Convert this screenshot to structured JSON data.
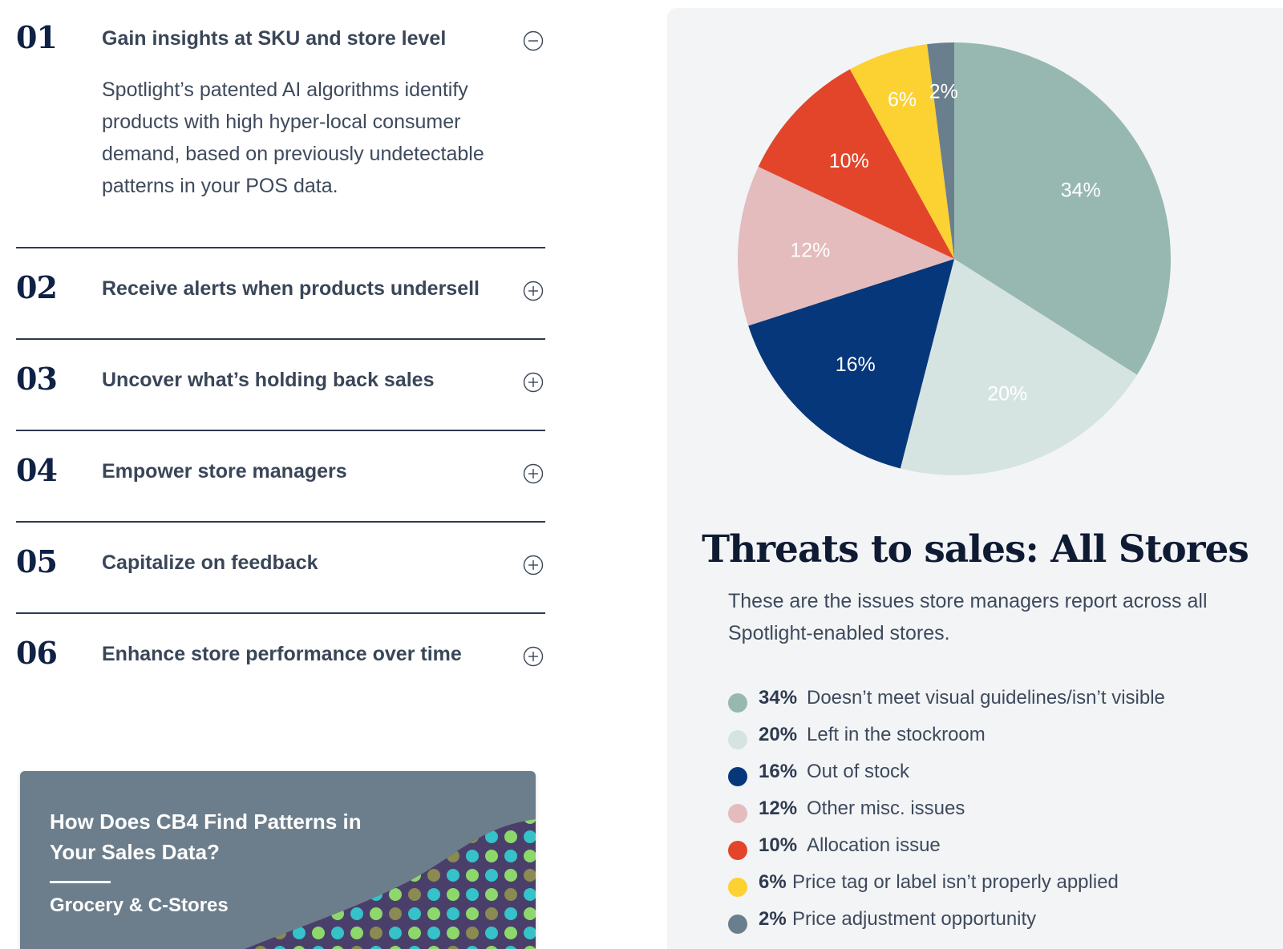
{
  "accordion": {
    "items": [
      {
        "num": "01",
        "title": "Gain insights at SKU and store level",
        "expanded": true,
        "body": "Spotlight’s patented AI algorithms identify products with high hyper-local consumer demand, based on previously undetectable patterns in your POS data.",
        "toggle_icon": "minus-circle-icon"
      },
      {
        "num": "02",
        "title": "Receive alerts when products undersell",
        "expanded": false,
        "toggle_icon": "plus-circle-icon"
      },
      {
        "num": "03",
        "title": "Uncover what’s holding back sales",
        "expanded": false,
        "toggle_icon": "plus-circle-icon"
      },
      {
        "num": "04",
        "title": "Empower store managers",
        "expanded": false,
        "toggle_icon": "plus-circle-icon"
      },
      {
        "num": "05",
        "title": "Capitalize on feedback",
        "expanded": false,
        "toggle_icon": "plus-circle-icon"
      },
      {
        "num": "06",
        "title": "Enhance store performance over time",
        "expanded": false,
        "toggle_icon": "plus-circle-icon"
      }
    ]
  },
  "promo_card": {
    "title": "How Does CB4 Find Patterns in Your Sales Data?",
    "subtitle": "Grocery & C-Stores",
    "background_color": "#6c7e8c"
  },
  "chart_panel": {
    "title": "Threats to sales: All Stores",
    "subtitle": "These are the issues store managers report across all Spotlight-enabled stores."
  },
  "chart_data": {
    "type": "pie",
    "title": "Threats to sales: All Stores",
    "slices": [
      {
        "label": "Doesn’t meet visual guidelines/isn’t visible",
        "value": 34,
        "pct_label": "34%",
        "color": "#97b8b0",
        "text_color": "#ffffff"
      },
      {
        "label": "Left in the stockroom",
        "value": 20,
        "pct_label": "20%",
        "color": "#d6e4e1",
        "text_color": "#ffffff"
      },
      {
        "label": "Out of stock",
        "value": 16,
        "pct_label": "16%",
        "color": "#06377a",
        "text_color": "#ffffff"
      },
      {
        "label": "Other misc. issues",
        "value": 12,
        "pct_label": "12%",
        "color": "#e4bcbd",
        "text_color": "#ffffff"
      },
      {
        "label": "Allocation issue",
        "value": 10,
        "pct_label": "10%",
        "color": "#e2452a",
        "text_color": "#ffffff"
      },
      {
        "label": "Price tag or label isn’t properly applied",
        "value": 6,
        "pct_label": "6%",
        "color": "#fcd232",
        "text_color": "#ffffff"
      },
      {
        "label": "Price adjustment opportunity",
        "value": 2,
        "pct_label": "2%",
        "color": "#6a7f8d",
        "text_color": "#ffffff"
      }
    ],
    "legend_placement": "below"
  }
}
